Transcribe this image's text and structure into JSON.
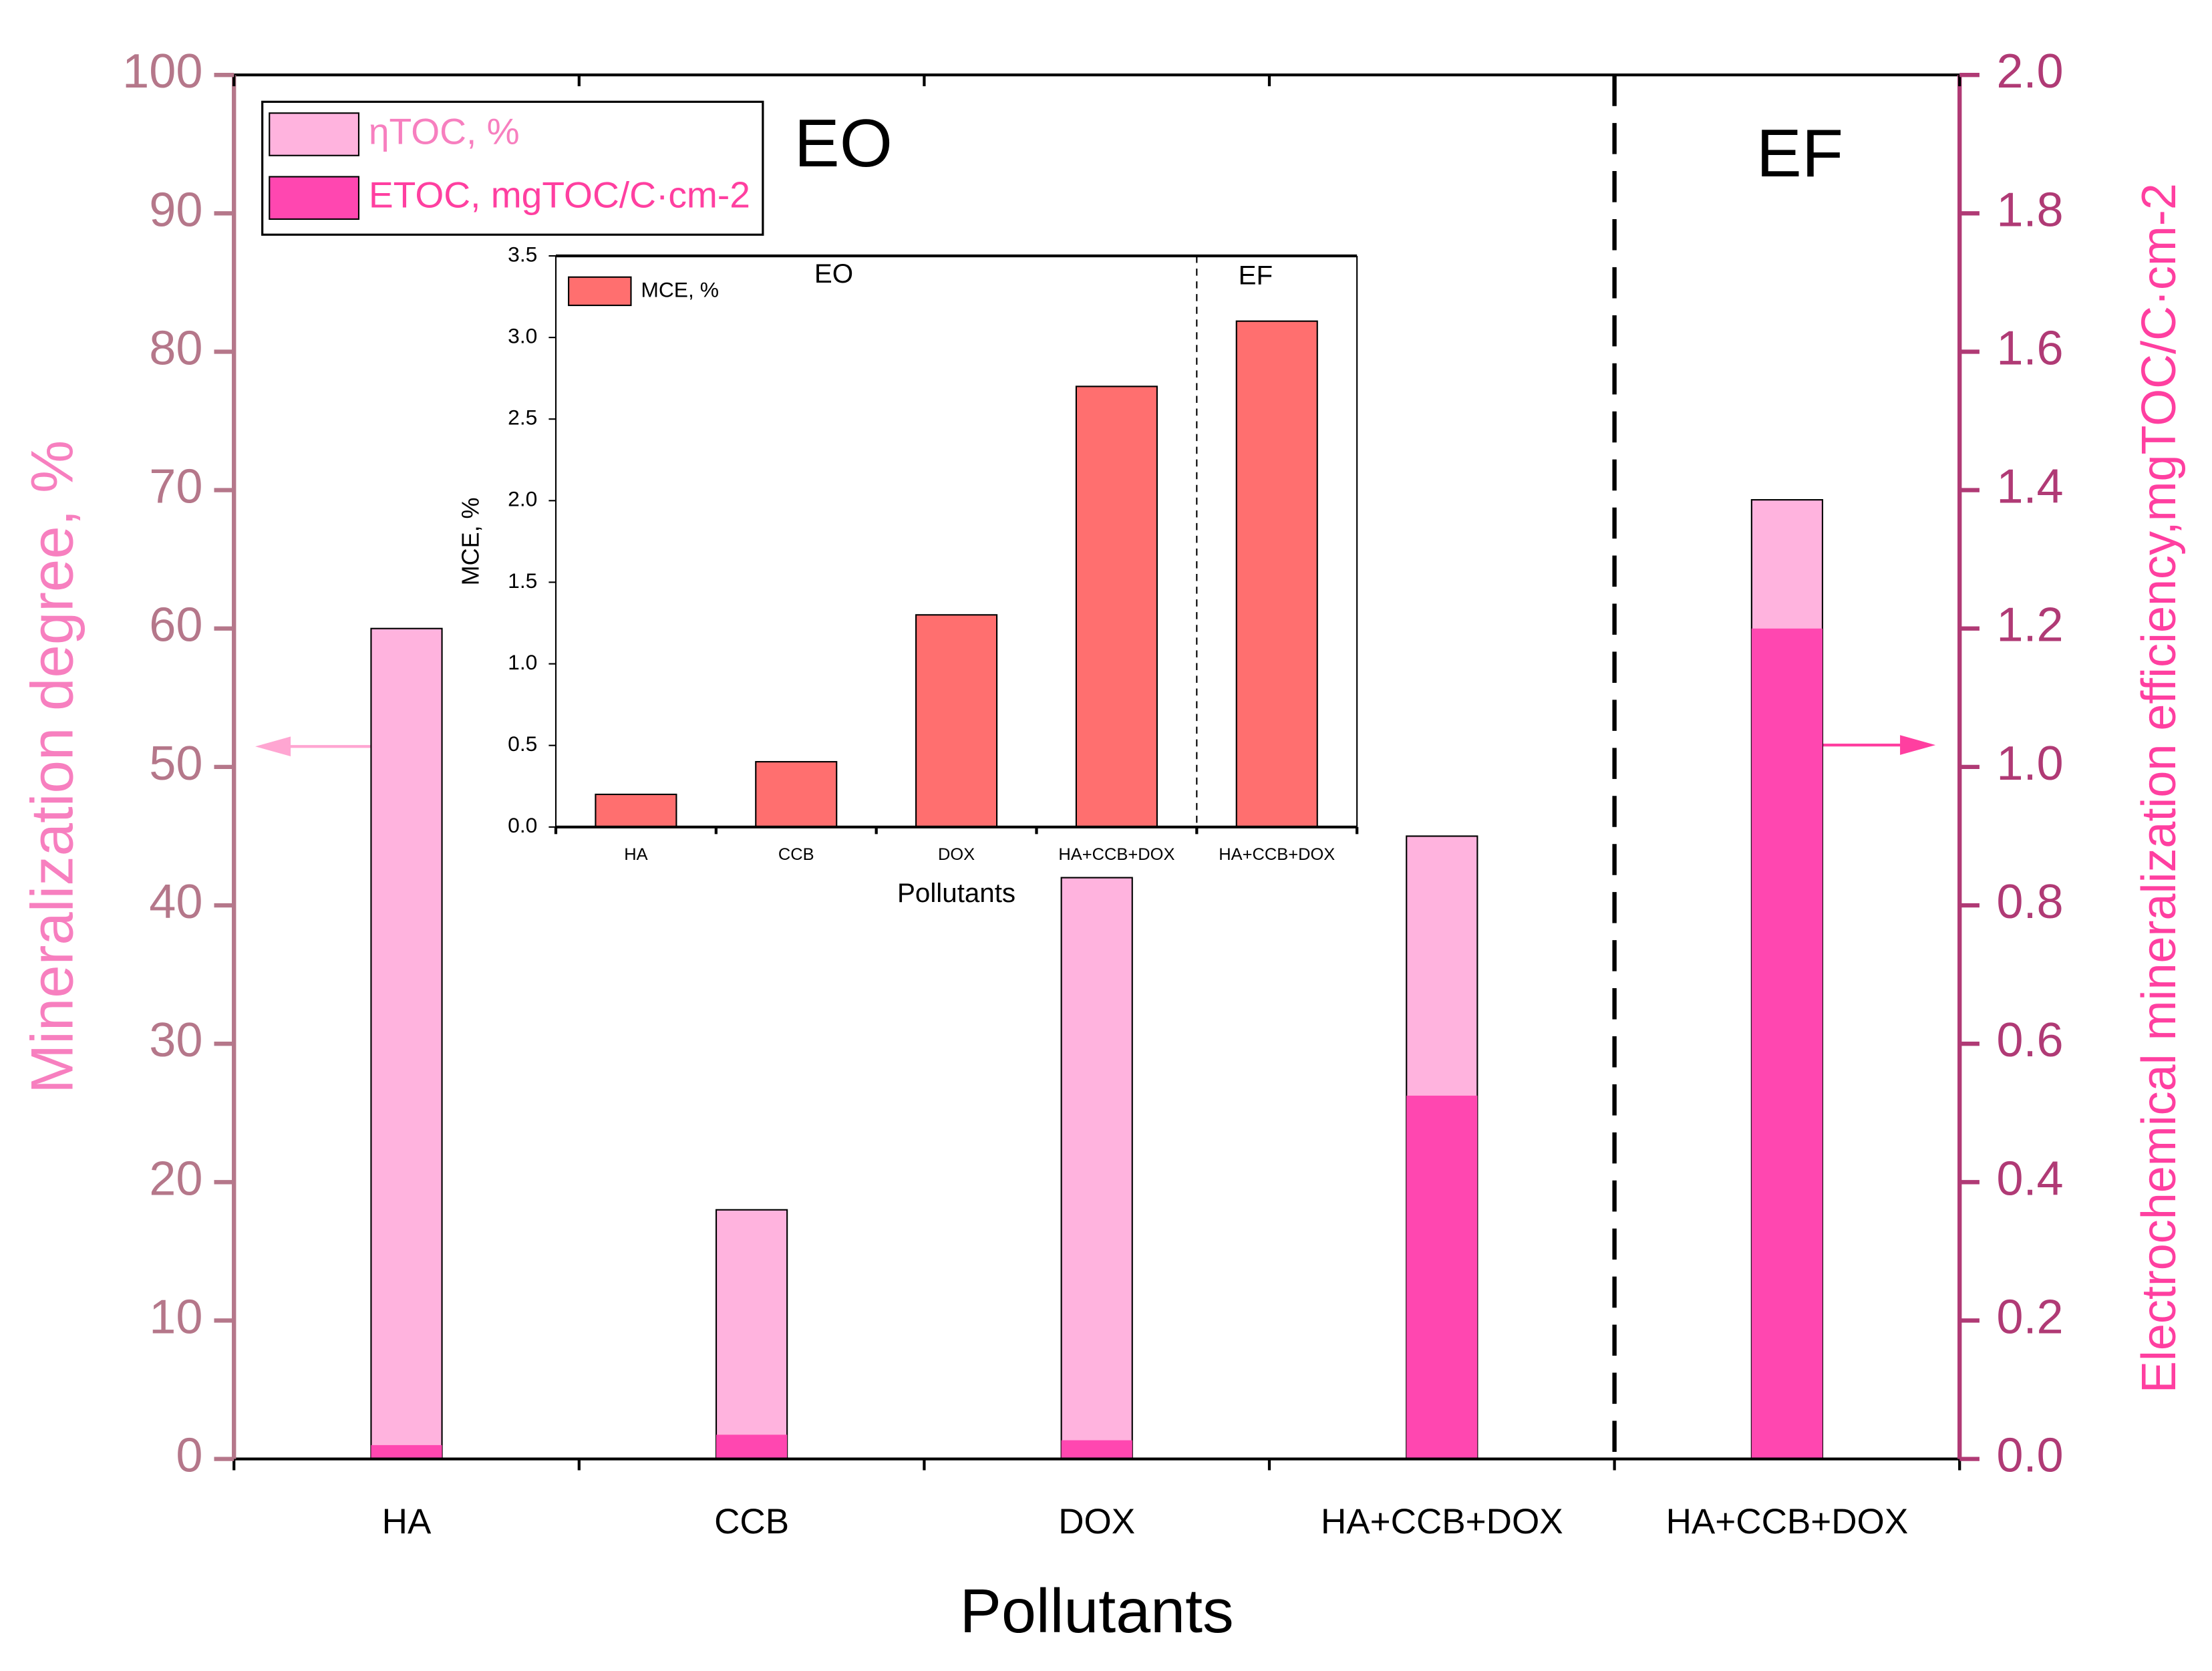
{
  "chart_data": [
    {
      "type": "bar",
      "categories": [
        "HA",
        "CCB",
        "DOX",
        "HA+CCB+DOX",
        "HA+CCB+DOX"
      ],
      "series": [
        {
          "name": "ηTOC, %",
          "color": "#ffb3de",
          "values": [
            60,
            18,
            42,
            45,
            69.3
          ]
        },
        {
          "name": "ETOC, mgTOC/C·cm-2",
          "color": "#ff47b0",
          "axis": "y2",
          "values": [
            0.02,
            0.035,
            0.027,
            0.525,
            1.2
          ]
        }
      ],
      "xlabel": "Pollutants",
      "ylabel": "Mineralization degree, %",
      "y2label": "Electrochemical mineralization efficiency,mgTOC/C·cm-2",
      "ylim": [
        0,
        100
      ],
      "yticks": [
        0,
        10,
        20,
        30,
        40,
        50,
        60,
        70,
        80,
        90,
        100
      ],
      "y2lim": [
        0,
        2
      ],
      "y2ticks": [
        {
          "value": 0,
          "label": "0.0"
        },
        0.2,
        0.4,
        0.6,
        0.8,
        {
          "value": 1,
          "label": "1.0"
        },
        1.2,
        1.4,
        1.6,
        1.8,
        {
          "value": 2,
          "label": "2.0"
        }
      ],
      "annotations": [
        "EO",
        "EF"
      ]
    },
    {
      "type": "bar",
      "categories": [
        "HA",
        "CCB",
        "DOX",
        "HA+CCB+DOX",
        "HA+CCB+DOX"
      ],
      "series": [
        {
          "name": "MCE, %",
          "color": "#ff6f6f",
          "values": [
            0.2,
            0.4,
            1.3,
            2.7,
            3.1
          ]
        }
      ],
      "xlabel": "Pollutants",
      "ylabel": "MCE, %",
      "ylim": [
        0,
        3.5
      ],
      "yticks": [
        {
          "value": 0,
          "label": "0.0"
        },
        0.5,
        {
          "value": 1,
          "label": "1.0"
        },
        1.5,
        {
          "value": 2,
          "label": "2.0"
        },
        2.5,
        {
          "value": 3,
          "label": "3.0"
        },
        3.5
      ],
      "annotations": [
        "EO",
        "EF"
      ]
    }
  ]
}
